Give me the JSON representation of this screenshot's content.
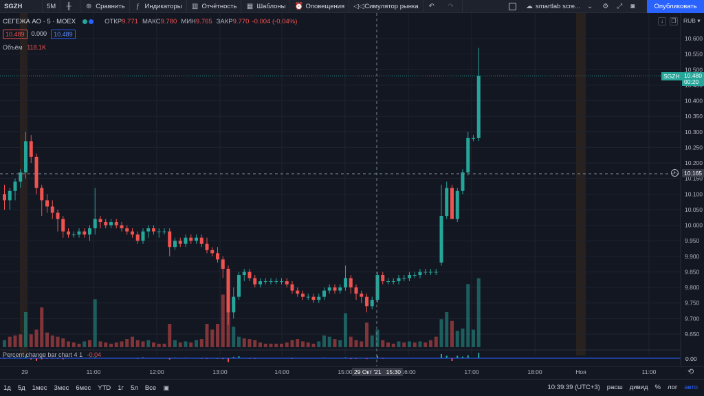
{
  "toolbar": {
    "symbol": "SGZH",
    "interval": "5M",
    "compare": "Сравнить",
    "indicators": "Индикаторы",
    "reports": "Отчётность",
    "templates": "Шаблоны",
    "alerts": "Оповещения",
    "replay": "Симулятор рынка",
    "layout_name": "smartlab scre...",
    "publish": "Опубликовать"
  },
  "legend": {
    "name": "СЕГЕЖА АО · 5 · MOEX",
    "open_label": "ОТКР",
    "open": "9.771",
    "high_label": "МАКС",
    "high": "9.780",
    "low_label": "МИН",
    "low": "9.765",
    "close_label": "ЗАКР",
    "close": "9.770",
    "change": "-0.004 (-0.04%)",
    "pill_bid": "10.489",
    "pill_spread": "0.000",
    "pill_ask": "10.489",
    "volume_label": "Объём",
    "volume_value": "118.1K",
    "pc_label": "Percent change bar chart 4 1",
    "pc_value": "-0.04"
  },
  "price_axis": {
    "currency": "RUB",
    "ticks": [
      "10.600",
      "10.550",
      "10.500",
      "10.450",
      "10.400",
      "10.350",
      "10.300",
      "10.250",
      "10.200",
      "10.150",
      "10.100",
      "10.050",
      "10.000",
      "9.950",
      "9.900",
      "9.850",
      "9.800",
      "9.750",
      "9.700",
      "9.650"
    ],
    "last_symbol": "SGZH",
    "last_price": "10.480",
    "countdown": "00:20",
    "crosshair_price": "10.165",
    "pc_zero": "0.00"
  },
  "time_axis": {
    "ticks": [
      "29",
      "11:00",
      "12:00",
      "13:00",
      "14:00",
      "15:00",
      "16:00",
      "17:00",
      "18:00",
      "Ноя",
      "11:00"
    ],
    "crosshair_time": "29 Окт '21   15:30"
  },
  "bottom": {
    "ranges": [
      "1д",
      "5д",
      "1мес",
      "3мес",
      "6мес",
      "YTD",
      "1г",
      "5л",
      "Все"
    ],
    "clock": "10:39:39 (UTC+3)",
    "ext": "расш",
    "adj": "дивид",
    "pct": "%",
    "log": "лог",
    "auto": "авто"
  },
  "colors": {
    "up": "#26a69a",
    "down": "#ef5350",
    "accent": "#2962ff",
    "background": "#131722"
  },
  "chart_data": {
    "type": "candlestick",
    "ylim": [
      9.62,
      10.63
    ],
    "candles": [
      [
        10.1,
        10.13,
        10.05,
        10.08
      ],
      [
        10.08,
        10.12,
        10.05,
        10.11
      ],
      [
        10.11,
        10.15,
        10.08,
        10.14
      ],
      [
        10.14,
        10.18,
        10.12,
        10.17
      ],
      [
        10.17,
        10.3,
        10.15,
        10.27
      ],
      [
        10.27,
        10.29,
        10.2,
        10.22
      ],
      [
        10.22,
        10.23,
        10.1,
        10.12
      ],
      [
        10.12,
        10.13,
        10.03,
        10.08
      ],
      [
        10.08,
        10.1,
        10.04,
        10.06
      ],
      [
        10.06,
        10.08,
        10.02,
        10.04
      ],
      [
        10.04,
        10.05,
        9.98,
        10.02
      ],
      [
        10.02,
        10.03,
        9.96,
        9.98
      ],
      [
        9.98,
        9.99,
        9.96,
        9.97
      ],
      [
        9.97,
        9.98,
        9.96,
        9.97
      ],
      [
        9.97,
        9.99,
        9.96,
        9.98
      ],
      [
        9.98,
        9.99,
        9.96,
        9.97
      ],
      [
        9.97,
        10.0,
        9.95,
        9.99
      ],
      [
        9.99,
        10.12,
        9.97,
        10.02
      ],
      [
        10.02,
        10.03,
        9.99,
        10.01
      ],
      [
        10.01,
        10.02,
        9.99,
        10.0
      ],
      [
        10.0,
        10.02,
        9.99,
        10.01
      ],
      [
        10.01,
        10.02,
        9.99,
        10.0
      ],
      [
        10.0,
        10.01,
        9.98,
        9.99
      ],
      [
        9.99,
        10.0,
        9.97,
        9.98
      ],
      [
        9.98,
        9.99,
        9.96,
        9.97
      ],
      [
        9.97,
        9.98,
        9.94,
        9.95
      ],
      [
        9.95,
        9.99,
        9.94,
        9.98
      ],
      [
        9.98,
        10.0,
        9.96,
        9.99
      ],
      [
        9.99,
        10.0,
        9.97,
        9.98
      ],
      [
        9.98,
        9.99,
        9.96,
        9.98
      ],
      [
        9.98,
        9.99,
        9.97,
        9.98
      ],
      [
        9.98,
        9.99,
        9.9,
        9.93
      ],
      [
        9.93,
        9.96,
        9.92,
        9.95
      ],
      [
        9.95,
        9.96,
        9.93,
        9.94
      ],
      [
        9.94,
        9.97,
        9.93,
        9.96
      ],
      [
        9.96,
        9.97,
        9.94,
        9.95
      ],
      [
        9.95,
        9.97,
        9.94,
        9.96
      ],
      [
        9.96,
        9.97,
        9.93,
        9.94
      ],
      [
        9.94,
        9.96,
        9.91,
        9.92
      ],
      [
        9.92,
        9.93,
        9.9,
        9.91
      ],
      [
        9.91,
        9.93,
        9.88,
        9.89
      ],
      [
        9.89,
        9.9,
        9.83,
        9.86
      ],
      [
        9.86,
        9.87,
        9.68,
        9.72
      ],
      [
        9.72,
        9.8,
        9.7,
        9.77
      ],
      [
        9.77,
        9.85,
        9.76,
        9.84
      ],
      [
        9.84,
        9.86,
        9.82,
        9.85
      ],
      [
        9.85,
        9.86,
        9.82,
        9.83
      ],
      [
        9.83,
        9.84,
        9.8,
        9.81
      ],
      [
        9.81,
        9.83,
        9.8,
        9.82
      ],
      [
        9.82,
        9.83,
        9.81,
        9.82
      ],
      [
        9.82,
        9.83,
        9.81,
        9.82
      ],
      [
        9.82,
        9.83,
        9.81,
        9.82
      ],
      [
        9.82,
        9.83,
        9.81,
        9.82
      ],
      [
        9.82,
        9.83,
        9.8,
        9.81
      ],
      [
        9.81,
        9.82,
        9.78,
        9.79
      ],
      [
        9.79,
        9.8,
        9.77,
        9.78
      ],
      [
        9.78,
        9.79,
        9.76,
        9.77
      ],
      [
        9.77,
        9.78,
        9.76,
        9.77
      ],
      [
        9.77,
        9.78,
        9.75,
        9.76
      ],
      [
        9.76,
        9.78,
        9.75,
        9.77
      ],
      [
        9.77,
        9.8,
        9.76,
        9.79
      ],
      [
        9.79,
        9.81,
        9.78,
        9.8
      ],
      [
        9.8,
        9.81,
        9.78,
        9.79
      ],
      [
        9.79,
        9.81,
        9.78,
        9.8
      ],
      [
        9.8,
        9.87,
        9.79,
        9.83
      ],
      [
        9.83,
        9.84,
        9.78,
        9.8
      ],
      [
        9.8,
        9.81,
        9.76,
        9.78
      ],
      [
        9.78,
        9.79,
        9.75,
        9.77
      ],
      [
        9.77,
        9.78,
        9.72,
        9.74
      ],
      [
        9.74,
        9.77,
        9.73,
        9.76
      ],
      [
        9.76,
        9.85,
        9.75,
        9.84
      ],
      [
        9.84,
        9.85,
        9.81,
        9.82
      ],
      [
        9.82,
        9.83,
        9.81,
        9.82
      ],
      [
        9.82,
        9.83,
        9.81,
        9.82
      ],
      [
        9.82,
        9.84,
        9.81,
        9.83
      ],
      [
        9.83,
        9.84,
        9.82,
        9.83
      ],
      [
        9.83,
        9.85,
        9.82,
        9.84
      ],
      [
        9.84,
        9.85,
        9.83,
        9.84
      ],
      [
        9.84,
        9.86,
        9.83,
        9.85
      ],
      [
        9.85,
        9.86,
        9.84,
        9.85
      ],
      [
        9.85,
        9.86,
        9.84,
        9.85
      ],
      [
        9.85,
        9.86,
        9.84,
        9.85
      ],
      [
        9.88,
        10.13,
        9.87,
        10.03
      ],
      [
        10.03,
        10.14,
        10.02,
        10.12
      ],
      [
        10.12,
        10.13,
        10.02,
        10.02
      ],
      [
        10.02,
        10.12,
        10.01,
        10.11
      ],
      [
        10.11,
        10.18,
        10.1,
        10.17
      ],
      [
        10.17,
        10.3,
        10.16,
        10.28
      ],
      [
        10.28,
        10.29,
        10.27,
        10.28
      ],
      [
        10.28,
        10.57,
        10.27,
        10.48
      ]
    ],
    "volumes": [
      [
        12,
        1
      ],
      [
        18,
        0
      ],
      [
        20,
        0
      ],
      [
        22,
        0
      ],
      [
        60,
        1
      ],
      [
        22,
        0
      ],
      [
        30,
        0
      ],
      [
        68,
        0
      ],
      [
        25,
        0
      ],
      [
        20,
        0
      ],
      [
        18,
        0
      ],
      [
        15,
        0
      ],
      [
        10,
        0
      ],
      [
        8,
        0
      ],
      [
        6,
        0
      ],
      [
        10,
        1
      ],
      [
        12,
        0
      ],
      [
        82,
        1
      ],
      [
        10,
        0
      ],
      [
        8,
        0
      ],
      [
        6,
        0
      ],
      [
        8,
        0
      ],
      [
        10,
        0
      ],
      [
        14,
        0
      ],
      [
        18,
        0
      ],
      [
        12,
        0
      ],
      [
        10,
        0
      ],
      [
        12,
        1
      ],
      [
        8,
        0
      ],
      [
        6,
        0
      ],
      [
        6,
        0
      ],
      [
        40,
        0
      ],
      [
        12,
        1
      ],
      [
        8,
        0
      ],
      [
        10,
        1
      ],
      [
        8,
        0
      ],
      [
        12,
        1
      ],
      [
        14,
        0
      ],
      [
        40,
        0
      ],
      [
        30,
        0
      ],
      [
        40,
        0
      ],
      [
        90,
        0
      ],
      [
        105,
        0
      ],
      [
        35,
        1
      ],
      [
        18,
        1
      ],
      [
        15,
        0
      ],
      [
        14,
        0
      ],
      [
        12,
        0
      ],
      [
        8,
        0
      ],
      [
        6,
        0
      ],
      [
        6,
        0
      ],
      [
        6,
        0
      ],
      [
        6,
        0
      ],
      [
        8,
        0
      ],
      [
        12,
        0
      ],
      [
        14,
        0
      ],
      [
        10,
        0
      ],
      [
        8,
        0
      ],
      [
        6,
        0
      ],
      [
        10,
        1
      ],
      [
        20,
        1
      ],
      [
        18,
        1
      ],
      [
        14,
        0
      ],
      [
        12,
        1
      ],
      [
        58,
        1
      ],
      [
        18,
        0
      ],
      [
        12,
        0
      ],
      [
        10,
        0
      ],
      [
        42,
        0
      ],
      [
        20,
        1
      ],
      [
        30,
        1
      ],
      [
        12,
        0
      ],
      [
        8,
        0
      ],
      [
        6,
        0
      ],
      [
        10,
        1
      ],
      [
        8,
        0
      ],
      [
        10,
        1
      ],
      [
        8,
        0
      ],
      [
        10,
        1
      ],
      [
        8,
        0
      ],
      [
        12,
        0
      ],
      [
        18,
        0
      ],
      [
        48,
        1
      ],
      [
        60,
        1
      ],
      [
        45,
        0
      ],
      [
        28,
        1
      ],
      [
        32,
        1
      ],
      [
        108,
        1
      ],
      [
        30,
        1
      ],
      [
        118,
        1
      ]
    ]
  }
}
